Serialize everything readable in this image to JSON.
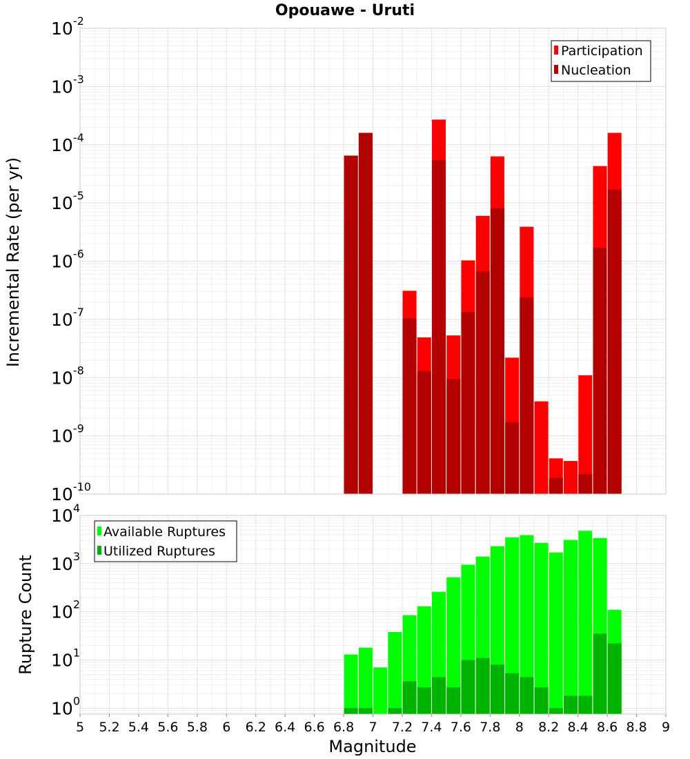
{
  "title": "Opouawe - Uruti",
  "chart_data": [
    {
      "type": "bar",
      "title": "Opouawe - Uruti",
      "xlabel": "",
      "ylabel": "Incremental Rate (per yr)",
      "yscale": "log",
      "ylim": [
        1e-10,
        0.01
      ],
      "xlim": [
        5,
        9
      ],
      "grid": true,
      "legend_position": "top-right",
      "x": [
        6.85,
        6.95,
        7.25,
        7.35,
        7.45,
        7.55,
        7.65,
        7.75,
        7.85,
        7.95,
        8.05,
        8.15,
        8.25,
        8.35,
        8.45,
        8.55,
        8.65
      ],
      "series": [
        {
          "name": "Participation",
          "color": "#ff0000",
          "values": [
            6.5e-05,
            0.00016,
            3.1e-07,
            4.9e-08,
            0.00027,
            5.3e-08,
            1.03e-06,
            6e-06,
            6.3e-05,
            2.2e-08,
            3.9e-06,
            3.9e-09,
            4.1e-10,
            3.7e-10,
            1.1e-08,
            4.3e-05,
            0.00016
          ]
        },
        {
          "name": "Nucleation",
          "color": "#b30000",
          "values": [
            6.5e-05,
            0.00016,
            1.05e-07,
            1.3e-08,
            5.4e-05,
            9.5e-09,
            1.35e-07,
            6.7e-07,
            8.1e-06,
            1.7e-09,
            2.4e-07,
            1e-10,
            1.9e-10,
            1e-10,
            2.2e-10,
            1.7e-06,
            1.7e-05
          ]
        }
      ]
    },
    {
      "type": "bar",
      "xlabel": "Magnitude",
      "ylabel": "Rupture Count",
      "yscale": "log",
      "ylim": [
        0.75,
        10000
      ],
      "xlim": [
        5,
        9
      ],
      "xticks": [
        "5",
        "5.2",
        "5.4",
        "5.6",
        "5.8",
        "6",
        "6.2",
        "6.4",
        "6.6",
        "6.8",
        "7",
        "7.2",
        "7.4",
        "7.6",
        "7.8",
        "8",
        "8.2",
        "8.4",
        "8.6",
        "8.8",
        "9"
      ],
      "grid": true,
      "legend_position": "top-left",
      "x": [
        6.85,
        6.95,
        7.05,
        7.15,
        7.25,
        7.35,
        7.45,
        7.55,
        7.65,
        7.75,
        7.85,
        7.95,
        8.05,
        8.15,
        8.25,
        8.35,
        8.45,
        8.55,
        8.65
      ],
      "series": [
        {
          "name": "Available Ruptures",
          "color": "#00ff00",
          "values": [
            13,
            18,
            7,
            38,
            85,
            130,
            260,
            520,
            950,
            1400,
            2300,
            3500,
            3900,
            2700,
            1700,
            3100,
            4800,
            3400,
            110
          ]
        },
        {
          "name": "Utilized Ruptures",
          "color": "#00b300",
          "values": [
            1,
            1,
            0,
            1,
            3.6,
            2.7,
            4.4,
            2.7,
            10,
            11,
            8,
            5.3,
            4.4,
            2.7,
            1,
            1.8,
            1.8,
            35,
            22
          ]
        }
      ]
    }
  ],
  "y_tick_labels_top": [
    {
      "base": "10",
      "exp": "-10"
    },
    {
      "base": "10",
      "exp": "-9"
    },
    {
      "base": "10",
      "exp": "-8"
    },
    {
      "base": "10",
      "exp": "-7"
    },
    {
      "base": "10",
      "exp": "-6"
    },
    {
      "base": "10",
      "exp": "-5"
    },
    {
      "base": "10",
      "exp": "-4"
    },
    {
      "base": "10",
      "exp": "-3"
    },
    {
      "base": "10",
      "exp": "-2"
    }
  ],
  "y_tick_labels_bottom": [
    {
      "base": "10",
      "exp": "0"
    },
    {
      "base": "10",
      "exp": "1"
    },
    {
      "base": "10",
      "exp": "2"
    },
    {
      "base": "10",
      "exp": "3"
    },
    {
      "base": "10",
      "exp": "4"
    }
  ]
}
